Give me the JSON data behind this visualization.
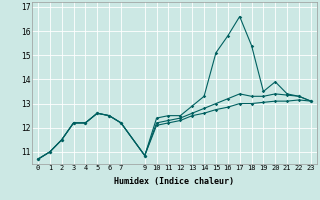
{
  "xlabel": "Humidex (Indice chaleur)",
  "background_color": "#cce8e4",
  "grid_color": "#ffffff",
  "line_color": "#006060",
  "xlim": [
    -0.5,
    23.5
  ],
  "ylim": [
    10.5,
    17.2
  ],
  "xticks": [
    0,
    1,
    2,
    3,
    4,
    5,
    6,
    7,
    9,
    10,
    11,
    12,
    13,
    14,
    15,
    16,
    17,
    18,
    19,
    20,
    21,
    22,
    23
  ],
  "yticks": [
    11,
    12,
    13,
    14,
    15,
    16,
    17
  ],
  "line1_x": [
    0,
    1,
    2,
    3,
    4,
    5,
    6,
    7,
    9,
    10,
    11,
    12,
    13,
    14,
    15,
    16,
    17,
    18,
    19,
    20,
    21,
    22,
    23
  ],
  "line1_y": [
    10.7,
    11.0,
    11.5,
    12.2,
    12.2,
    12.6,
    12.5,
    12.2,
    10.85,
    12.4,
    12.5,
    12.5,
    12.9,
    13.3,
    15.1,
    15.8,
    16.6,
    15.4,
    13.5,
    13.9,
    13.4,
    13.3,
    13.1
  ],
  "line2_x": [
    0,
    1,
    2,
    3,
    4,
    5,
    6,
    7,
    9,
    10,
    11,
    12,
    13,
    14,
    15,
    16,
    17,
    18,
    19,
    20,
    21,
    22,
    23
  ],
  "line2_y": [
    10.7,
    11.0,
    11.5,
    12.2,
    12.2,
    12.6,
    12.5,
    12.2,
    10.85,
    12.2,
    12.3,
    12.4,
    12.6,
    12.8,
    13.0,
    13.2,
    13.4,
    13.3,
    13.3,
    13.4,
    13.35,
    13.3,
    13.1
  ],
  "line3_x": [
    0,
    1,
    2,
    3,
    4,
    5,
    6,
    7,
    9,
    10,
    11,
    12,
    13,
    14,
    15,
    16,
    17,
    18,
    19,
    20,
    21,
    22,
    23
  ],
  "line3_y": [
    10.7,
    11.0,
    11.5,
    12.2,
    12.2,
    12.6,
    12.5,
    12.2,
    10.85,
    12.1,
    12.2,
    12.3,
    12.5,
    12.6,
    12.75,
    12.85,
    13.0,
    13.0,
    13.05,
    13.1,
    13.1,
    13.15,
    13.1
  ],
  "tick_fontsize": 5.0,
  "xlabel_fontsize": 6.0
}
